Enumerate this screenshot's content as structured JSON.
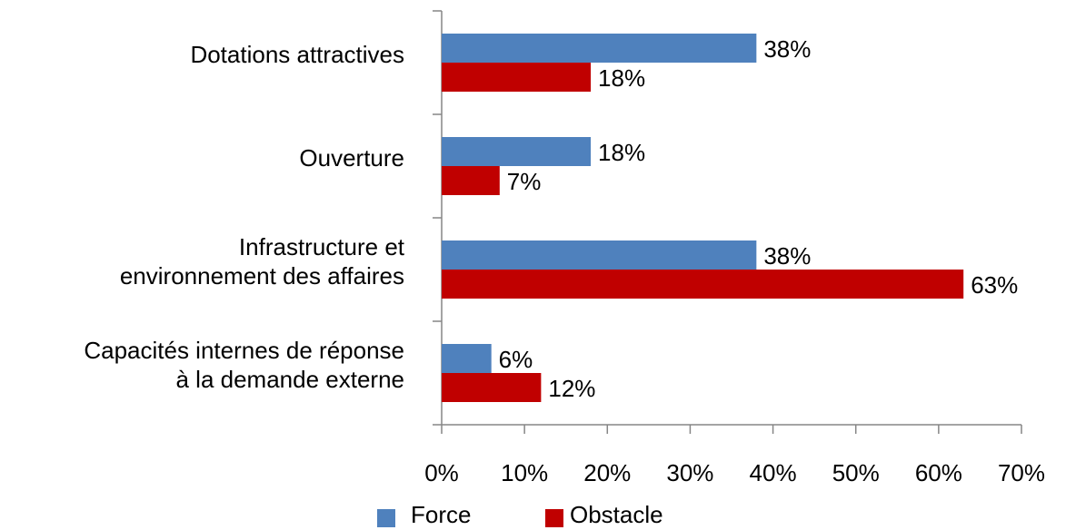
{
  "chart_data": {
    "type": "hbar",
    "categories": [
      [
        "Dotations attractives"
      ],
      [
        "Ouverture"
      ],
      [
        "Infrastructure et",
        "environnement des affaires"
      ],
      [
        "Capacités internes de réponse",
        "à la demande externe"
      ]
    ],
    "series": [
      {
        "name": "Force",
        "color": "#4f81bd",
        "values": [
          38,
          18,
          38,
          6
        ],
        "value_labels": [
          "38%",
          "18%",
          "38%",
          "6%"
        ]
      },
      {
        "name": "Obstacle",
        "color": "#c00000",
        "values": [
          18,
          7,
          63,
          12
        ],
        "value_labels": [
          "18%",
          "7%",
          "63%",
          "12%"
        ]
      }
    ],
    "xlim": [
      0,
      70
    ],
    "xticks": [
      {
        "value": 0,
        "label": "0%"
      },
      {
        "value": 10,
        "label": "10%"
      },
      {
        "value": 20,
        "label": "20%"
      },
      {
        "value": 30,
        "label": "30%"
      },
      {
        "value": 40,
        "label": "40%"
      },
      {
        "value": 50,
        "label": "50%"
      },
      {
        "value": 60,
        "label": "60%"
      },
      {
        "value": 70,
        "label": "70%"
      }
    ],
    "legend": "bottom"
  }
}
